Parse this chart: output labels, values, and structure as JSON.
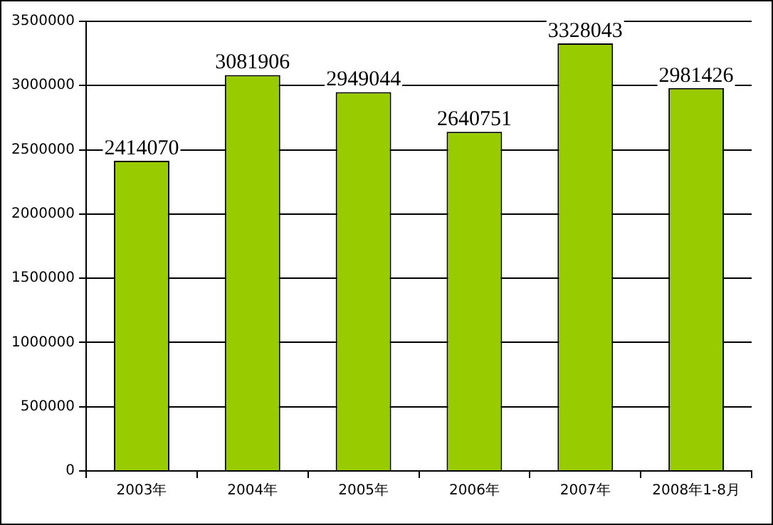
{
  "chart_data": {
    "type": "bar",
    "categories": [
      "2003年",
      "2004年",
      "2005年",
      "2006年",
      "2007年",
      "2008年1-8月"
    ],
    "values": [
      2414070,
      3081906,
      2949044,
      2640751,
      3328043,
      2981426
    ],
    "color": "#99cc00",
    "ylim": [
      0,
      3500000
    ],
    "yticks": [
      0,
      500000,
      1000000,
      1500000,
      2000000,
      2500000,
      3000000,
      3500000
    ],
    "grid": "y",
    "legend": false,
    "data_labels": true
  }
}
